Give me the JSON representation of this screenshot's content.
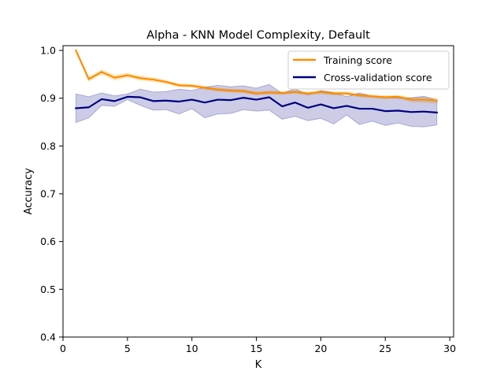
{
  "chart_data": {
    "type": "line",
    "title": "Alpha - KNN Model Complexity, Default",
    "xlabel": "K",
    "ylabel": "Accuracy",
    "xlim": [
      0,
      30.3
    ],
    "ylim": [
      0.4,
      1.01
    ],
    "xticks": [
      0,
      5,
      10,
      15,
      20,
      25,
      30
    ],
    "yticks": [
      0.4,
      0.5,
      0.6,
      0.7,
      0.8,
      0.9,
      1.0
    ],
    "ytick_labels": [
      "0.4",
      "0.5",
      "0.6",
      "0.7",
      "0.8",
      "0.9",
      "1.0"
    ],
    "grid": false,
    "legend_position": "top-right",
    "x": [
      1,
      2,
      3,
      4,
      5,
      6,
      7,
      8,
      9,
      10,
      11,
      12,
      13,
      14,
      15,
      16,
      17,
      18,
      19,
      20,
      21,
      22,
      23,
      24,
      25,
      26,
      27,
      28,
      29
    ],
    "series": [
      {
        "name": "Training score",
        "color": "#ff8c00",
        "band_color": "#ffa500",
        "values": [
          1.0,
          0.94,
          0.955,
          0.943,
          0.948,
          0.942,
          0.939,
          0.934,
          0.927,
          0.926,
          0.922,
          0.918,
          0.916,
          0.915,
          0.91,
          0.912,
          0.911,
          0.913,
          0.91,
          0.913,
          0.91,
          0.91,
          0.906,
          0.904,
          0.902,
          0.903,
          0.897,
          0.897,
          0.895
        ],
        "lower": [
          1.0,
          0.936,
          0.951,
          0.938,
          0.944,
          0.938,
          0.935,
          0.931,
          0.924,
          0.923,
          0.919,
          0.915,
          0.913,
          0.912,
          0.907,
          0.909,
          0.908,
          0.91,
          0.907,
          0.91,
          0.907,
          0.907,
          0.903,
          0.901,
          0.899,
          0.9,
          0.893,
          0.892,
          0.89
        ],
        "upper": [
          1.0,
          0.944,
          0.959,
          0.948,
          0.952,
          0.946,
          0.943,
          0.937,
          0.93,
          0.929,
          0.925,
          0.921,
          0.919,
          0.918,
          0.913,
          0.915,
          0.914,
          0.916,
          0.913,
          0.916,
          0.913,
          0.913,
          0.909,
          0.907,
          0.905,
          0.906,
          0.901,
          0.902,
          0.9
        ]
      },
      {
        "name": "Cross-validation score",
        "color": "#000080",
        "band_color": "#000080",
        "values": [
          0.879,
          0.881,
          0.898,
          0.894,
          0.903,
          0.902,
          0.894,
          0.895,
          0.893,
          0.897,
          0.891,
          0.897,
          0.896,
          0.901,
          0.897,
          0.902,
          0.883,
          0.891,
          0.88,
          0.887,
          0.879,
          0.884,
          0.878,
          0.878,
          0.873,
          0.874,
          0.871,
          0.872,
          0.87
        ],
        "lower": [
          0.849,
          0.859,
          0.885,
          0.883,
          0.897,
          0.885,
          0.875,
          0.876,
          0.867,
          0.878,
          0.859,
          0.867,
          0.868,
          0.876,
          0.873,
          0.875,
          0.856,
          0.862,
          0.853,
          0.858,
          0.846,
          0.865,
          0.845,
          0.852,
          0.843,
          0.848,
          0.841,
          0.84,
          0.844
        ],
        "upper": [
          0.909,
          0.903,
          0.911,
          0.905,
          0.909,
          0.919,
          0.913,
          0.914,
          0.919,
          0.916,
          0.923,
          0.927,
          0.924,
          0.926,
          0.921,
          0.929,
          0.91,
          0.92,
          0.907,
          0.916,
          0.912,
          0.903,
          0.911,
          0.904,
          0.903,
          0.9,
          0.901,
          0.904,
          0.896
        ]
      }
    ]
  }
}
